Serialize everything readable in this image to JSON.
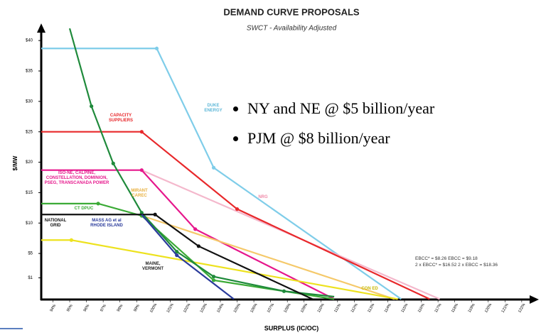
{
  "chart_data": {
    "type": "line",
    "title": "DEMAND CURVE PROPOSALS",
    "subtitle": "SWCT - Availability Adjusted",
    "y_label": "$/MW",
    "x_label": "SURPLUS (IC/OC)",
    "xlim": [
      93.3,
      122.6
    ],
    "ylim": [
      -2.5,
      42
    ],
    "xticks": [
      {
        "value": 94,
        "label": "94%"
      },
      {
        "value": 95,
        "label": "95%"
      },
      {
        "value": 96,
        "label": "96%"
      },
      {
        "value": 97,
        "label": "97%"
      },
      {
        "value": 98,
        "label": "98%"
      },
      {
        "value": 99,
        "label": "99%"
      },
      {
        "value": 100,
        "label": "100%"
      },
      {
        "value": 101,
        "label": "101%"
      },
      {
        "value": 102,
        "label": "102%"
      },
      {
        "value": 103,
        "label": "103%"
      },
      {
        "value": 104,
        "label": "104%"
      },
      {
        "value": 105,
        "label": "105%"
      },
      {
        "value": 106,
        "label": "106%"
      },
      {
        "value": 107,
        "label": "107%"
      },
      {
        "value": 108,
        "label": "108%"
      },
      {
        "value": 109,
        "label": "109%"
      },
      {
        "value": 110,
        "label": "110%"
      },
      {
        "value": 111,
        "label": "111%"
      },
      {
        "value": 112,
        "label": "112%"
      },
      {
        "value": 113,
        "label": "113%"
      },
      {
        "value": 114,
        "label": "114%"
      },
      {
        "value": 115,
        "label": "115%"
      },
      {
        "value": 116,
        "label": "116%"
      },
      {
        "value": 117,
        "label": "117%"
      },
      {
        "value": 118,
        "label": "118%"
      },
      {
        "value": 119,
        "label": "119%"
      },
      {
        "value": 120,
        "label": "120%"
      },
      {
        "value": 121,
        "label": "121%"
      },
      {
        "value": 122,
        "label": "122%"
      }
    ],
    "yticks": [
      {
        "value": 1,
        "label": "$1"
      },
      {
        "value": 5,
        "label": "$5"
      },
      {
        "value": 10,
        "label": "$10"
      },
      {
        "value": 15,
        "label": "$15"
      },
      {
        "value": 20,
        "label": "$20"
      },
      {
        "value": 25,
        "label": "$25"
      },
      {
        "value": 30,
        "label": "$30"
      },
      {
        "value": 35,
        "label": "$35"
      },
      {
        "value": 40,
        "label": "$40"
      }
    ],
    "series": [
      {
        "name": "DUKE\nENERGY",
        "color": "#7fcde9",
        "x": [
          93.3,
          100.2,
          103.6,
          114.8
        ],
        "values": [
          38.7,
          38.7,
          19.1,
          -2.5
        ]
      },
      {
        "name": "NRG",
        "color": "#f4b8cc",
        "x": [
          99.3,
          117.1
        ],
        "values": [
          18.7,
          -2.5
        ]
      },
      {
        "name": "CAPACITY\nSUPPLIERS",
        "color": "#e8282b",
        "x": [
          93.3,
          99.3,
          105.0,
          116.5
        ],
        "values": [
          25,
          25,
          12.3,
          -2.5
        ]
      },
      {
        "name": "ISO-NE, CALPINE,\nCONSTELLATION, DOMINION,\nPSEG, TRANSCANADA POWER",
        "color": "#e6178c",
        "x": [
          93.3,
          99.3,
          102.5,
          110.8
        ],
        "values": [
          18.7,
          18.7,
          9.0,
          -2.5
        ]
      },
      {
        "name": "MIRANT\nCAREC",
        "color": "#f5c96a",
        "x": [
          99.1,
          114.4
        ],
        "values": [
          11.4,
          -2.5
        ]
      },
      {
        "name": "CON ED",
        "color": "#ede21e",
        "x": [
          93.3,
          95.1,
          114.6
        ],
        "values": [
          7.2,
          7.2,
          -2.5
        ]
      },
      {
        "name": "CT DPUC",
        "color": "#3aaa35",
        "x": [
          93.3,
          96.7,
          99.3,
          103.6,
          110.8
        ],
        "values": [
          13.2,
          13.2,
          11.2,
          0.6,
          -2.5
        ]
      },
      {
        "name": "MAINE,\nVERMONT",
        "color": "#1f8a3b",
        "x": [
          95.0,
          96.3,
          97.6,
          99.3,
          101.4,
          103.6,
          107.8,
          110.8
        ],
        "values": [
          42,
          29.2,
          19.8,
          11.7,
          5.3,
          1.2,
          -1.2,
          -2.1
        ]
      },
      {
        "name": "NATIONAL\nGRID",
        "color": "#111111",
        "x": [
          93.3,
          100.1,
          102.7,
          109.5
        ],
        "values": [
          11.4,
          11.4,
          6.2,
          -2.5
        ]
      },
      {
        "name": "MASS AG et al\nRHODE ISLAND",
        "color": "#2a3b9b",
        "x": [
          99.3,
          101.4,
          104.8
        ],
        "values": [
          11.4,
          4.7,
          -2.5
        ]
      }
    ],
    "annotations": [
      "EBCC* = $8.26   EBCC = $9.18",
      "2 x EBCC* = $16.52   2 x EBCC = $18.36"
    ],
    "bullets": [
      "NY and NE @ $5 billion/year",
      "PJM @ $8 billion/year"
    ]
  }
}
